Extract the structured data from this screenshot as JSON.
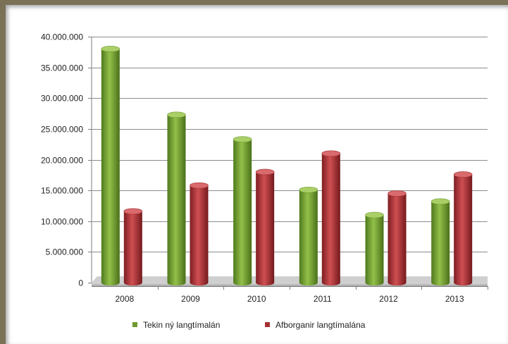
{
  "chart_data": {
    "type": "bar",
    "categories": [
      "2008",
      "2009",
      "2010",
      "2011",
      "2012",
      "2013"
    ],
    "series": [
      {
        "name": "Tekin ný langtímalán",
        "values": [
          38000000,
          27300000,
          23300000,
          15100000,
          11000000,
          13200000
        ],
        "color": "#6e9a2c"
      },
      {
        "name": "Afborganir langtímalána",
        "values": [
          11600000,
          15800000,
          18000000,
          21000000,
          14500000,
          17600000
        ],
        "color": "#a43034"
      }
    ],
    "yticks": [
      "0",
      "5.000.000",
      "10.000.000",
      "15.000.000",
      "20.000.000",
      "25.000.000",
      "30.000.000",
      "35.000.000",
      "40.000.000"
    ],
    "ylim": [
      0,
      40000000
    ],
    "grid": true,
    "legend": "bottom"
  }
}
